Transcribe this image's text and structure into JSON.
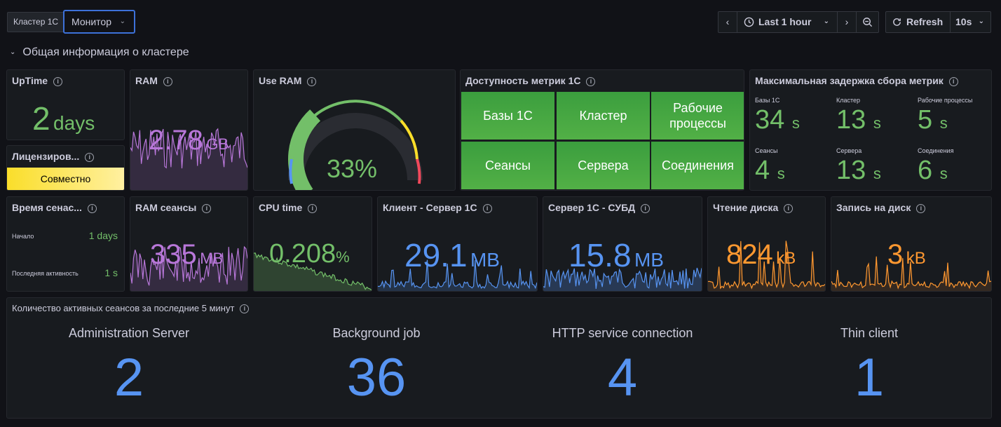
{
  "toolbar": {
    "variable_label": "Кластер 1С",
    "variable_value": "Монитор",
    "time_range": "Last 1 hour",
    "refresh_label": "Refresh",
    "refresh_interval": "10s"
  },
  "section": {
    "title": "Общая информация о кластере"
  },
  "panels": {
    "uptime": {
      "title": "UpTime",
      "value": "2",
      "unit": "days"
    },
    "license": {
      "title": "Лицензиров...",
      "value": "Совместно"
    },
    "ram": {
      "title": "RAM",
      "value": "2.78",
      "unit": "GB"
    },
    "use_ram": {
      "title": "Use RAM",
      "value": "33%",
      "gauge_fraction": 0.33
    },
    "availability": {
      "title": "Доступность метрик 1С",
      "cells": [
        "Базы 1С",
        "Кластер",
        "Рабочие процессы",
        "Сеансы",
        "Сервера",
        "Соединения"
      ]
    },
    "max_delay": {
      "title": "Максимальная задержка сбора метрик",
      "items": [
        {
          "label": "Базы 1С",
          "value": "34",
          "unit": "s"
        },
        {
          "label": "Кластер",
          "value": "13",
          "unit": "s"
        },
        {
          "label": "Рабочие процессы",
          "value": "5",
          "unit": "s"
        },
        {
          "label": "Сеансы",
          "value": "4",
          "unit": "s"
        },
        {
          "label": "Сервера",
          "value": "13",
          "unit": "s"
        },
        {
          "label": "Соединения",
          "value": "6",
          "unit": "s"
        }
      ]
    },
    "session_time": {
      "title": "Время сенас...",
      "rows": [
        {
          "label": "Начало",
          "value": "1 days"
        },
        {
          "label": "Последняя активность",
          "value": "1 s"
        }
      ]
    },
    "ram_sessions": {
      "title": "RAM сеансы",
      "value": "335",
      "unit": "MB"
    },
    "cpu_time": {
      "title": "CPU time",
      "value": "0.208",
      "unit": "%"
    },
    "client_server": {
      "title": "Клиент - Сервер 1С",
      "value": "29.1",
      "unit": "MB"
    },
    "server_dbms": {
      "title": "Сервер 1С - СУБД",
      "value": "15.8",
      "unit": "MB"
    },
    "disk_read": {
      "title": "Чтение диска",
      "value": "824",
      "unit": "kB"
    },
    "disk_write": {
      "title": "Запись на диск",
      "value": "3",
      "unit": "kB"
    },
    "active_sessions": {
      "title": "Количество активных сеансов за последние 5 минут",
      "items": [
        {
          "label": "Administration Server",
          "value": "2"
        },
        {
          "label": "Background job",
          "value": "36"
        },
        {
          "label": "HTTP service connection",
          "value": "4"
        },
        {
          "label": "Thin client",
          "value": "1"
        }
      ]
    }
  },
  "colors": {
    "green": "#73bf69",
    "purple": "#b877d9",
    "blue": "#5794f2",
    "orange": "#ff9830",
    "yellow": "#fade2a"
  }
}
